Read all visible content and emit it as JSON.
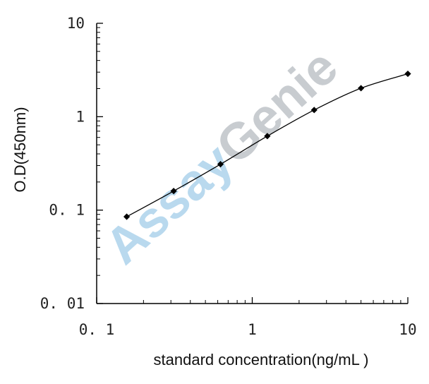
{
  "chart_data": {
    "type": "line",
    "title": "",
    "xlabel": "standard concentration(ng/mL  )",
    "ylabel": "O.D(450nm)",
    "x_scale": "log",
    "y_scale": "log",
    "xlim": [
      0.1,
      10
    ],
    "ylim": [
      0.01,
      10
    ],
    "x_ticks": [
      "0. 1",
      "1",
      "10"
    ],
    "y_ticks": [
      "10",
      "1",
      "0. 1",
      "0. 01"
    ],
    "grid": false,
    "legend": "none",
    "series": [
      {
        "x": [
          0.156,
          0.3125,
          0.625,
          1.25,
          2.5,
          5,
          10
        ],
        "y": [
          0.085,
          0.16,
          0.31,
          0.62,
          1.18,
          2.02,
          2.88
        ]
      }
    ],
    "watermark": {
      "part1": "Assay",
      "part2": "Genie"
    },
    "colors": {
      "axis": "#000000",
      "line": "#000000",
      "marker": "#000000",
      "watermark_part1": "#b9d9ee",
      "watermark_part2": "#c8ccd0"
    }
  }
}
